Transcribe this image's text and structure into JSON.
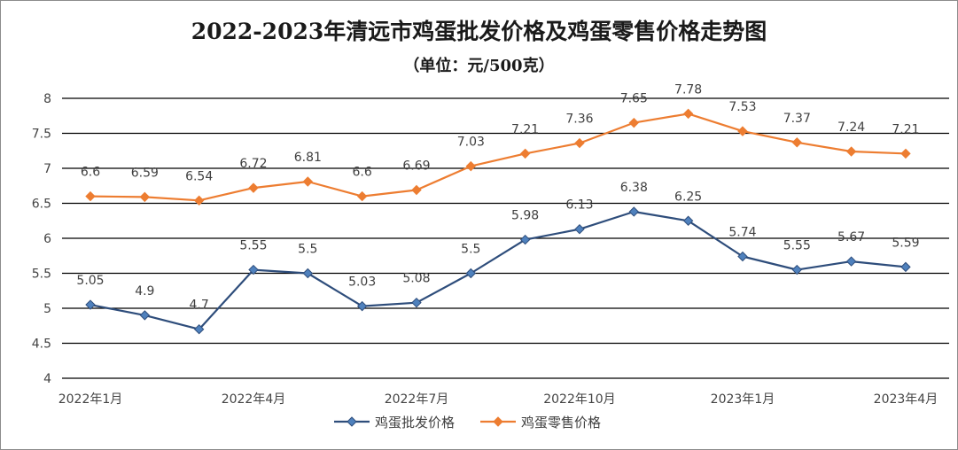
{
  "chart_data": {
    "type": "line",
    "title": "2022-2023年清远市鸡蛋批发价格及鸡蛋零售价格走势图",
    "subtitle": "（单位：元/500克）",
    "ylim": [
      4,
      8
    ],
    "yticks": [
      "4",
      "4.5",
      "5",
      "5.5",
      "6",
      "6.5",
      "7",
      "7.5",
      "8"
    ],
    "ytick_values": [
      4,
      4.5,
      5,
      5.5,
      6,
      6.5,
      7,
      7.5,
      8
    ],
    "grid": true,
    "legend_position": "bottom",
    "x_tick_labels": [
      {
        "index": 0,
        "label": "2022年1月"
      },
      {
        "index": 3,
        "label": "2022年4月"
      },
      {
        "index": 6,
        "label": "2022年7月"
      },
      {
        "index": 9,
        "label": "2022年10月"
      },
      {
        "index": 12,
        "label": "2023年1月"
      },
      {
        "index": 15,
        "label": "2023年4月"
      }
    ],
    "series": [
      {
        "name": "鸡蛋批发价格",
        "color": "#2e4d7b",
        "marker_color": "#4f81bd",
        "values": [
          5.05,
          4.9,
          4.7,
          5.55,
          5.5,
          5.03,
          5.08,
          5.5,
          5.98,
          6.13,
          6.38,
          6.25,
          5.74,
          5.55,
          5.67,
          5.59
        ],
        "labels": [
          "5.05",
          "4.9",
          "4.7",
          "5.55",
          "5.5",
          "5.03",
          "5.08",
          "5.5",
          "5.98",
          "6.13",
          "6.38",
          "6.25",
          "5.74",
          "5.55",
          "5.67",
          "5.59"
        ]
      },
      {
        "name": "鸡蛋零售价格",
        "color": "#ed7d31",
        "marker_color": "#ed7d31",
        "values": [
          6.6,
          6.59,
          6.54,
          6.72,
          6.81,
          6.6,
          6.69,
          7.03,
          7.21,
          7.36,
          7.65,
          7.78,
          7.53,
          7.37,
          7.24,
          7.21
        ],
        "labels": [
          "6.6",
          "6.59",
          "6.54",
          "6.72",
          "6.81",
          "6.6",
          "6.69",
          "7.03",
          "7.21",
          "7.36",
          "7.65",
          "7.78",
          "7.53",
          "7.37",
          "7.24",
          "7.21"
        ]
      }
    ]
  }
}
